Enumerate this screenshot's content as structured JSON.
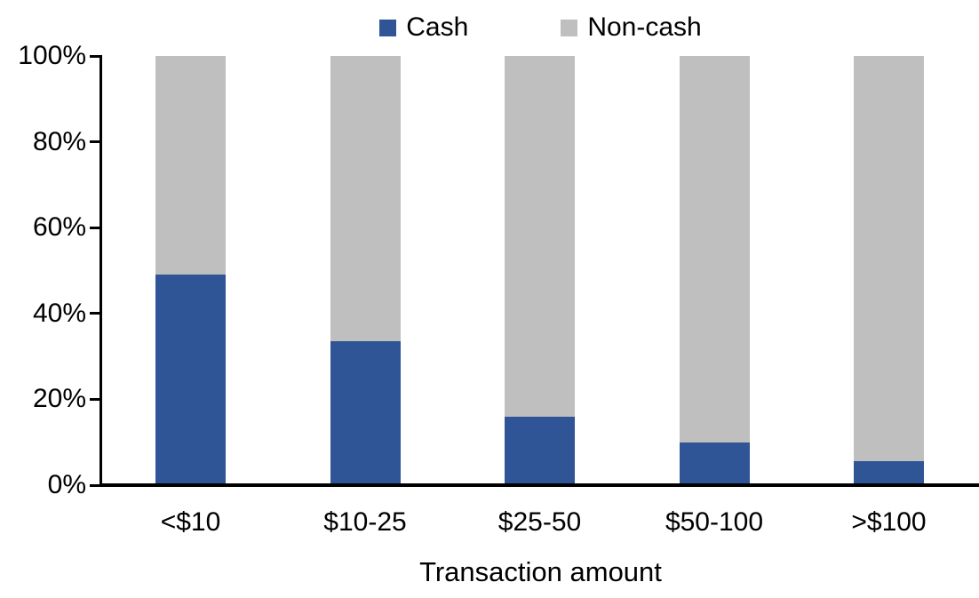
{
  "chart_data": {
    "type": "bar",
    "stacked": true,
    "orientation": "vertical",
    "title": "",
    "xlabel": "Transaction amount",
    "ylabel": "",
    "categories": [
      "<$10",
      "$10-25",
      "$25-50",
      "$50-100",
      ">$100"
    ],
    "series": [
      {
        "name": "Cash",
        "color": "#2F5597",
        "values": [
          49,
          33.5,
          16,
          10,
          5.5
        ]
      },
      {
        "name": "Non-cash",
        "color": "#BFBFBF",
        "values": [
          51,
          66.5,
          84,
          90,
          94.5
        ]
      }
    ],
    "ylim": [
      0,
      100
    ],
    "yticks": {
      "values": [
        0,
        20,
        40,
        60,
        80,
        100
      ],
      "labels": [
        "0%",
        "20%",
        "40%",
        "60%",
        "80%",
        "100%"
      ]
    },
    "grid": false,
    "legend_position": "top-center",
    "axis_color": "#000000",
    "background_color": "#FFFFFF"
  }
}
